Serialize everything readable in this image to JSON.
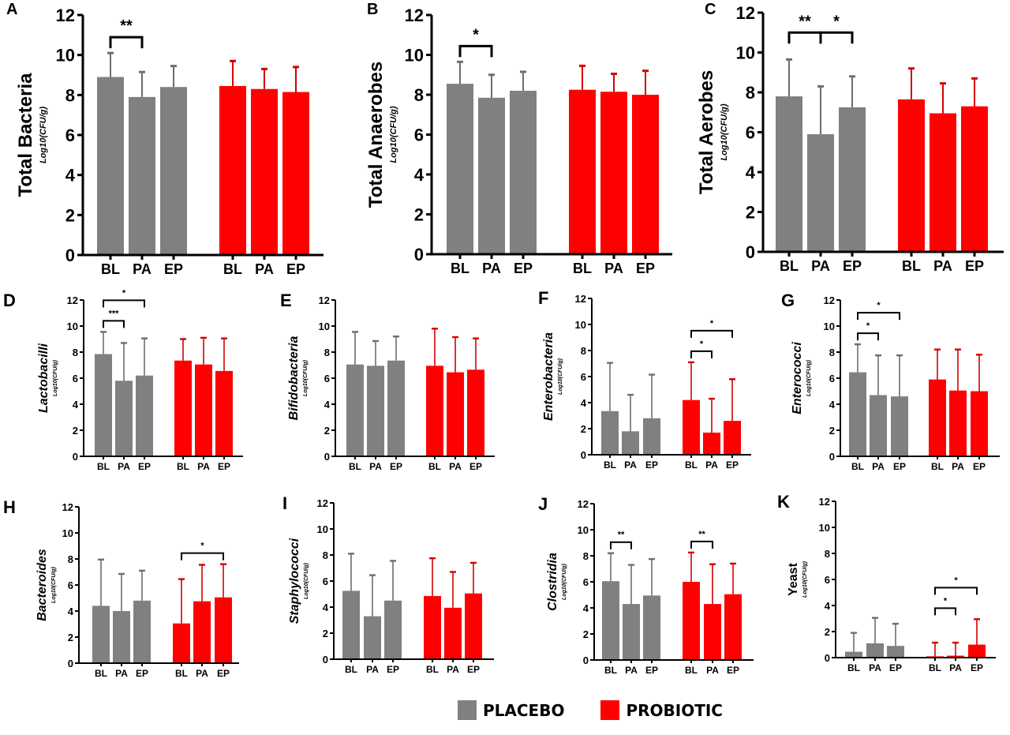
{
  "figure": {
    "legend": [
      {
        "name": "PLACEBO",
        "color": "#808080"
      },
      {
        "name": "PROBIOTIC",
        "color": "#ff0000"
      }
    ],
    "colors": {
      "placebo": "#808080",
      "probiotic": "#ff0000",
      "placebo_error": "#6e6e6e",
      "probiotic_error": "#d40000"
    }
  },
  "chart_data": [
    {
      "panel": "A",
      "type": "bar",
      "title": "Total Bacteria",
      "ylabel": "Total Bacteria",
      "ysublabel": "Log10(CFU/g)",
      "italic": false,
      "categories": [
        "BL",
        "PA",
        "EP",
        "BL",
        "PA",
        "EP"
      ],
      "ylim": [
        0,
        12
      ],
      "yticks": [
        0,
        2,
        4,
        6,
        8,
        10,
        12
      ],
      "series": [
        {
          "name": "PLACEBO",
          "values": [
            8.9,
            7.9,
            8.4
          ],
          "error_upper": [
            10.1,
            9.15,
            9.45
          ]
        },
        {
          "name": "PROBIOTIC",
          "values": [
            8.45,
            8.3,
            8.15
          ],
          "error_upper": [
            9.7,
            9.3,
            9.4
          ]
        }
      ],
      "significance": [
        {
          "group": "PLACEBO",
          "from": "BL",
          "to": "PA",
          "label": "**"
        }
      ]
    },
    {
      "panel": "B",
      "type": "bar",
      "title": "Total Anaerobes",
      "ylabel": "Total Anaerobes",
      "ysublabel": "Log10(CFU/g)",
      "italic": false,
      "categories": [
        "BL",
        "PA",
        "EP",
        "BL",
        "PA",
        "EP"
      ],
      "ylim": [
        0,
        12
      ],
      "yticks": [
        0,
        2,
        4,
        6,
        8,
        10,
        12
      ],
      "series": [
        {
          "name": "PLACEBO",
          "values": [
            8.55,
            7.85,
            8.2
          ],
          "error_upper": [
            9.65,
            9.0,
            9.15
          ]
        },
        {
          "name": "PROBIOTIC",
          "values": [
            8.25,
            8.15,
            8.0
          ],
          "error_upper": [
            9.45,
            9.05,
            9.2
          ]
        }
      ],
      "significance": [
        {
          "group": "PLACEBO",
          "from": "BL",
          "to": "PA",
          "label": "*"
        }
      ]
    },
    {
      "panel": "C",
      "type": "bar",
      "title": "Total Aerobes",
      "ylabel": "Total Aerobes",
      "ysublabel": "Log10(CFU/g)",
      "italic": false,
      "categories": [
        "BL",
        "PA",
        "EP",
        "BL",
        "PA",
        "EP"
      ],
      "ylim": [
        0,
        12
      ],
      "yticks": [
        0,
        2,
        4,
        6,
        8,
        10,
        12
      ],
      "series": [
        {
          "name": "PLACEBO",
          "values": [
            7.8,
            5.9,
            7.25
          ],
          "error_upper": [
            9.65,
            8.3,
            8.8
          ]
        },
        {
          "name": "PROBIOTIC",
          "values": [
            7.65,
            6.95,
            7.3
          ],
          "error_upper": [
            9.2,
            8.45,
            8.7
          ]
        }
      ],
      "significance": [
        {
          "group": "PLACEBO",
          "from": "BL",
          "to": "PA",
          "label": "**"
        },
        {
          "group": "PLACEBO",
          "from": "PA",
          "to": "EP",
          "label": "*"
        }
      ]
    },
    {
      "panel": "D",
      "type": "bar",
      "title": "Lactobacilli",
      "ylabel": "Lactobacilli",
      "ysublabel": "Log10(CFU/g)",
      "italic": true,
      "categories": [
        "BL",
        "PA",
        "EP",
        "BL",
        "PA",
        "EP"
      ],
      "ylim": [
        0,
        12
      ],
      "yticks": [
        0,
        2,
        4,
        6,
        8,
        10,
        12
      ],
      "series": [
        {
          "name": "PLACEBO",
          "values": [
            7.85,
            5.8,
            6.2
          ],
          "error_upper": [
            9.55,
            8.7,
            9.05
          ]
        },
        {
          "name": "PROBIOTIC",
          "values": [
            7.35,
            7.05,
            6.55
          ],
          "error_upper": [
            9.0,
            9.1,
            9.05
          ]
        }
      ],
      "significance": [
        {
          "group": "PLACEBO",
          "from": "BL",
          "to": "PA",
          "label": "***"
        },
        {
          "group": "PLACEBO",
          "from": "BL",
          "to": "EP",
          "label": "*"
        }
      ]
    },
    {
      "panel": "E",
      "type": "bar",
      "title": "Bifidobacteria",
      "ylabel": "Bifidobacteria",
      "ysublabel": "Log10(CFU/g)",
      "italic": true,
      "categories": [
        "BL",
        "PA",
        "EP",
        "BL",
        "PA",
        "EP"
      ],
      "ylim": [
        0,
        12
      ],
      "yticks": [
        0,
        2,
        4,
        6,
        8,
        10,
        12
      ],
      "series": [
        {
          "name": "PLACEBO",
          "values": [
            7.05,
            6.95,
            7.35
          ],
          "error_upper": [
            9.55,
            8.85,
            9.2
          ]
        },
        {
          "name": "PROBIOTIC",
          "values": [
            6.95,
            6.45,
            6.65
          ],
          "error_upper": [
            9.8,
            9.15,
            9.05
          ]
        }
      ],
      "significance": []
    },
    {
      "panel": "F",
      "type": "bar",
      "title": "Enterobacteria",
      "ylabel": "Enterobacteria",
      "ysublabel": "Log10(CFU/g)",
      "italic": true,
      "categories": [
        "BL",
        "PA",
        "EP",
        "BL",
        "PA",
        "EP"
      ],
      "ylim": [
        0,
        12
      ],
      "yticks": [
        0,
        2,
        4,
        6,
        8,
        10,
        12
      ],
      "series": [
        {
          "name": "PLACEBO",
          "values": [
            3.35,
            1.8,
            2.8
          ],
          "error_upper": [
            7.05,
            4.6,
            6.15
          ]
        },
        {
          "name": "PROBIOTIC",
          "values": [
            4.2,
            1.7,
            2.6
          ],
          "error_upper": [
            7.1,
            4.3,
            5.8
          ]
        }
      ],
      "significance": [
        {
          "group": "PROBIOTIC",
          "from": "BL",
          "to": "PA",
          "label": "*"
        },
        {
          "group": "PROBIOTIC",
          "from": "BL",
          "to": "EP",
          "label": "*"
        }
      ]
    },
    {
      "panel": "G",
      "type": "bar",
      "title": "Enterococci",
      "ylabel": "Enterococci",
      "ysublabel": "Log10(CFU/g)",
      "italic": true,
      "categories": [
        "BL",
        "PA",
        "EP",
        "BL",
        "PA",
        "EP"
      ],
      "ylim": [
        0,
        12
      ],
      "yticks": [
        0,
        2,
        4,
        6,
        8,
        10,
        12
      ],
      "series": [
        {
          "name": "PLACEBO",
          "values": [
            6.45,
            4.7,
            4.6
          ],
          "error_upper": [
            8.6,
            7.75,
            7.75
          ]
        },
        {
          "name": "PROBIOTIC",
          "values": [
            5.9,
            5.05,
            5.0
          ],
          "error_upper": [
            8.2,
            8.2,
            7.8
          ]
        }
      ],
      "significance": [
        {
          "group": "PLACEBO",
          "from": "BL",
          "to": "PA",
          "label": "*"
        },
        {
          "group": "PLACEBO",
          "from": "BL",
          "to": "EP",
          "label": "*"
        }
      ]
    },
    {
      "panel": "H",
      "type": "bar",
      "title": "Bacteroides",
      "ylabel": "Bacteroides",
      "ysublabel": "Log10(CFU/g)",
      "italic": true,
      "categories": [
        "BL",
        "PA",
        "EP",
        "BL",
        "PA",
        "EP"
      ],
      "ylim": [
        0,
        12
      ],
      "yticks": [
        0,
        2,
        4,
        6,
        8,
        10,
        12
      ],
      "series": [
        {
          "name": "PLACEBO",
          "values": [
            4.4,
            4.0,
            4.8
          ],
          "error_upper": [
            7.95,
            6.85,
            7.1
          ]
        },
        {
          "name": "PROBIOTIC",
          "values": [
            3.05,
            4.75,
            5.05
          ],
          "error_upper": [
            6.45,
            7.55,
            7.6
          ]
        }
      ],
      "significance": [
        {
          "group": "PROBIOTIC",
          "from": "BL",
          "to": "EP",
          "label": "*"
        }
      ]
    },
    {
      "panel": "I",
      "type": "bar",
      "title": "Staphylococci",
      "ylabel": "Staphylococci",
      "ysublabel": "Log10(CFU/g)",
      "italic": true,
      "categories": [
        "BL",
        "PA",
        "EP",
        "BL",
        "PA",
        "EP"
      ],
      "ylim": [
        0,
        12
      ],
      "yticks": [
        0,
        2,
        4,
        6,
        8,
        10,
        12
      ],
      "series": [
        {
          "name": "PLACEBO",
          "values": [
            5.25,
            3.3,
            4.5
          ],
          "error_upper": [
            8.1,
            6.45,
            7.55
          ]
        },
        {
          "name": "PROBIOTIC",
          "values": [
            4.85,
            3.95,
            5.05
          ],
          "error_upper": [
            7.75,
            6.7,
            7.4
          ]
        }
      ],
      "significance": []
    },
    {
      "panel": "J",
      "type": "bar",
      "title": "Clostridia",
      "ylabel": "Clostridia",
      "ysublabel": "Log10(CFU/g)",
      "italic": true,
      "categories": [
        "BL",
        "PA",
        "EP",
        "BL",
        "PA",
        "EP"
      ],
      "ylim": [
        0,
        12
      ],
      "yticks": [
        0,
        2,
        4,
        6,
        8,
        10,
        12
      ],
      "series": [
        {
          "name": "PLACEBO",
          "values": [
            6.05,
            4.3,
            4.95
          ],
          "error_upper": [
            8.2,
            7.3,
            7.75
          ]
        },
        {
          "name": "PROBIOTIC",
          "values": [
            6.0,
            4.3,
            5.05
          ],
          "error_upper": [
            8.25,
            7.35,
            7.4
          ]
        }
      ],
      "significance": [
        {
          "group": "PLACEBO",
          "from": "BL",
          "to": "PA",
          "label": "**"
        },
        {
          "group": "PROBIOTIC",
          "from": "BL",
          "to": "PA",
          "label": "**"
        }
      ]
    },
    {
      "panel": "K",
      "type": "bar",
      "title": "Yeast",
      "ylabel": "Yeast",
      "ysublabel": "Log10(CFU/g)",
      "italic": false,
      "categories": [
        "BL",
        "PA",
        "EP",
        "BL",
        "PA",
        "EP"
      ],
      "ylim": [
        0,
        12
      ],
      "yticks": [
        0,
        2,
        4,
        6,
        8,
        10,
        12
      ],
      "series": [
        {
          "name": "PLACEBO",
          "values": [
            0.45,
            1.1,
            0.9
          ],
          "error_upper": [
            1.9,
            3.05,
            2.6
          ]
        },
        {
          "name": "PROBIOTIC",
          "values": [
            0.1,
            0.15,
            1.0
          ],
          "error_upper": [
            1.15,
            1.15,
            2.95
          ]
        }
      ],
      "significance": [
        {
          "group": "PROBIOTIC",
          "from": "BL",
          "to": "PA",
          "label": "*"
        },
        {
          "group": "PROBIOTIC",
          "from": "BL",
          "to": "EP",
          "label": "*"
        }
      ]
    }
  ]
}
